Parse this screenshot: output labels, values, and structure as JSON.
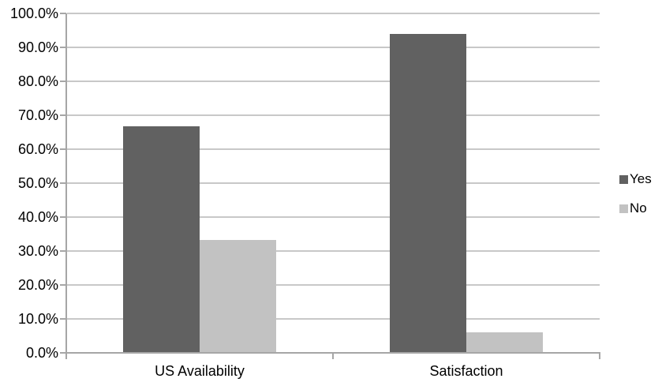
{
  "chart_data": {
    "type": "bar",
    "title": "",
    "categories": [
      "US Availability",
      "Satisfaction"
    ],
    "series": [
      {
        "name": "Yes",
        "color": "#616161",
        "values": [
          66.7,
          94.0
        ]
      },
      {
        "name": "No",
        "color": "#c2c2c2",
        "values": [
          33.3,
          6.0
        ]
      }
    ],
    "xlabel": "",
    "ylabel": "",
    "ylim": [
      0,
      100
    ],
    "ytick_step": 10,
    "yticks": [
      "0.0%",
      "10.0%",
      "20.0%",
      "30.0%",
      "40.0%",
      "50.0%",
      "60.0%",
      "70.0%",
      "80.0%",
      "90.0%",
      "100.0%"
    ],
    "grid": true,
    "legend_position": "right",
    "legend_labels": [
      "Yes",
      "No"
    ]
  },
  "colors": {
    "background": "#ffffff",
    "gridline": "#c8c8c8",
    "axis": "#a6a6a6",
    "text": "#000000"
  }
}
